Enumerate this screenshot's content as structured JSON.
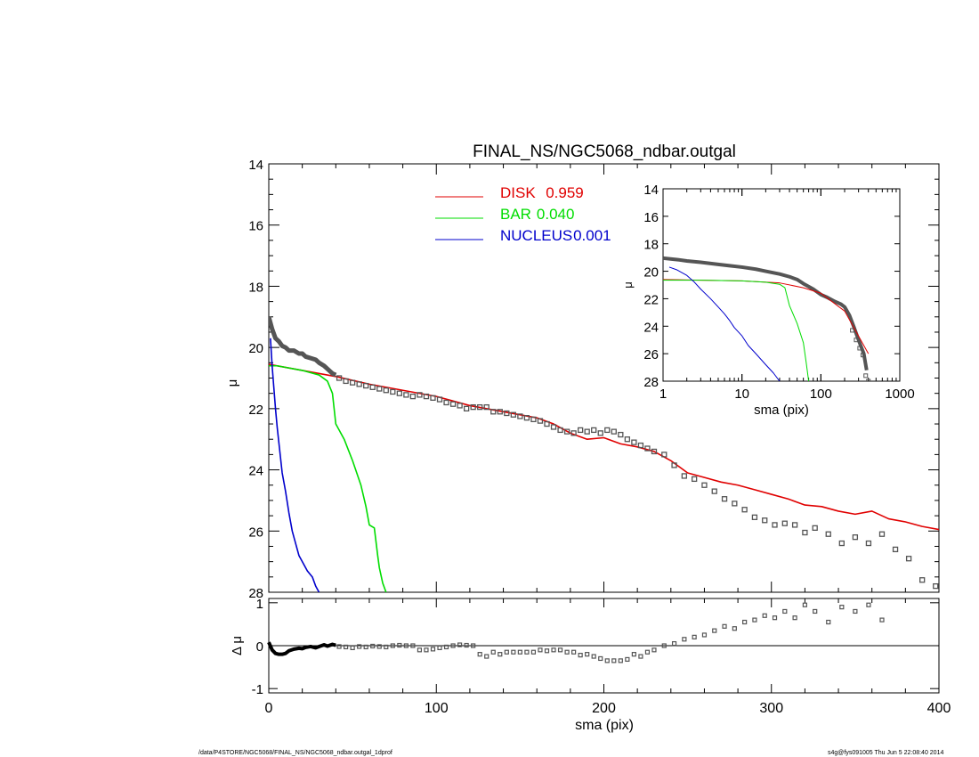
{
  "footer": {
    "path": "/data/P4STORE/NGC5068/FINAL_NS/NGC5068_ndbar.outgal_1dprof",
    "user_time": "s4g@fys091005  Thu Jun  5 22:08:40 2014"
  },
  "chart_data": [
    {
      "id": "main",
      "type": "line",
      "title": "FINAL_NS/NGC5068_ndbar.outgal",
      "xlabel": "",
      "ylabel": "μ",
      "xlim": [
        0,
        400
      ],
      "ylim": [
        28,
        14
      ],
      "y_inverted": true,
      "yticks": [
        14,
        16,
        18,
        20,
        22,
        24,
        26,
        28
      ],
      "grid": false,
      "legend_position": "top-center",
      "legend": [
        {
          "name": "DISK",
          "value": "0.959",
          "color": "#e00000"
        },
        {
          "name": "BAR",
          "value": "0.040",
          "color": "#00dd00"
        },
        {
          "name": "NUCLEUS",
          "value": "0.001",
          "color": "#0000cc"
        }
      ],
      "series": [
        {
          "name": "DISK",
          "color": "#e00000",
          "style": "line",
          "x": [
            0,
            20,
            40,
            60,
            80,
            100,
            120,
            140,
            160,
            170,
            180,
            190,
            200,
            210,
            220,
            230,
            240,
            250,
            260,
            270,
            280,
            290,
            300,
            310,
            320,
            330,
            340,
            350,
            360,
            370,
            380,
            390,
            400
          ],
          "y": [
            20.55,
            20.75,
            20.95,
            21.2,
            21.4,
            21.6,
            21.9,
            22.1,
            22.3,
            22.5,
            22.8,
            23.0,
            22.95,
            23.15,
            23.25,
            23.4,
            23.7,
            24.1,
            24.25,
            24.4,
            24.5,
            24.65,
            24.8,
            24.95,
            25.15,
            25.2,
            25.35,
            25.45,
            25.35,
            25.6,
            25.7,
            25.85,
            25.95
          ]
        },
        {
          "name": "BAR",
          "color": "#00dd00",
          "style": "line",
          "x": [
            0,
            5,
            10,
            20,
            30,
            35,
            38,
            40,
            45,
            50,
            55,
            58,
            60,
            63,
            65,
            66,
            68,
            70
          ],
          "y": [
            20.6,
            20.6,
            20.65,
            20.75,
            20.9,
            21.1,
            21.5,
            22.5,
            23.0,
            23.7,
            24.5,
            25.2,
            25.8,
            25.9,
            26.8,
            27.2,
            27.7,
            28.0
          ]
        },
        {
          "name": "NUCLEUS",
          "color": "#0000cc",
          "style": "line",
          "x": [
            1,
            2,
            3,
            4,
            5,
            6,
            7,
            8,
            10,
            12,
            14,
            16,
            18,
            20,
            23,
            26,
            28,
            30
          ],
          "y": [
            19.7,
            20.6,
            21.3,
            22.0,
            22.6,
            23.1,
            23.6,
            24.1,
            24.7,
            25.4,
            26.0,
            26.4,
            26.8,
            27.0,
            27.3,
            27.5,
            27.8,
            28.0
          ]
        },
        {
          "name": "data",
          "color": "#555555",
          "style": "squares",
          "x": [
            42,
            46,
            50,
            54,
            58,
            62,
            66,
            70,
            74,
            78,
            82,
            86,
            90,
            94,
            98,
            102,
            106,
            110,
            114,
            118,
            122,
            126,
            130,
            134,
            138,
            142,
            146,
            150,
            154,
            158,
            162,
            166,
            170,
            174,
            178,
            182,
            186,
            190,
            194,
            198,
            202,
            206,
            210,
            214,
            218,
            222,
            226,
            230,
            236,
            242,
            248,
            254,
            260,
            266,
            272,
            278,
            284,
            290,
            296,
            302,
            308,
            314,
            320,
            326,
            334,
            342,
            350,
            358,
            366,
            374,
            382,
            390,
            398
          ],
          "y": [
            21.0,
            21.1,
            21.15,
            21.2,
            21.25,
            21.3,
            21.35,
            21.4,
            21.45,
            21.5,
            21.55,
            21.6,
            21.55,
            21.6,
            21.65,
            21.7,
            21.8,
            21.85,
            21.9,
            22.0,
            21.95,
            21.95,
            21.95,
            22.1,
            22.1,
            22.15,
            22.2,
            22.25,
            22.3,
            22.35,
            22.4,
            22.5,
            22.6,
            22.7,
            22.75,
            22.8,
            22.7,
            22.75,
            22.7,
            22.8,
            22.7,
            22.75,
            22.85,
            23.0,
            23.1,
            23.2,
            23.3,
            23.4,
            23.5,
            23.85,
            24.2,
            24.3,
            24.5,
            24.7,
            24.95,
            25.1,
            25.3,
            25.55,
            25.65,
            25.8,
            25.75,
            25.8,
            26.05,
            25.9,
            26.1,
            26.4,
            26.2,
            26.4,
            26.1,
            26.6,
            26.9,
            27.6,
            27.8
          ]
        },
        {
          "name": "data-inner",
          "color": "#555555",
          "style": "thick",
          "x": [
            0,
            2,
            4,
            6,
            8,
            10,
            12,
            15,
            18,
            20,
            22,
            25,
            28,
            30,
            33,
            35,
            38,
            40
          ],
          "y": [
            19.0,
            19.4,
            19.7,
            19.8,
            19.95,
            20.0,
            20.1,
            20.1,
            20.2,
            20.2,
            20.3,
            20.35,
            20.4,
            20.5,
            20.6,
            20.7,
            20.85,
            20.9
          ]
        }
      ]
    },
    {
      "id": "residual",
      "type": "scatter",
      "xlabel": "sma (pix)",
      "ylabel": "Δ μ",
      "xlim": [
        0,
        400
      ],
      "ylim": [
        -1.1,
        1.1
      ],
      "xticks": [
        0,
        100,
        200,
        300,
        400
      ],
      "yticks": [
        1,
        0,
        -1
      ],
      "zero_line": true,
      "series": [
        {
          "name": "residual-inner",
          "style": "thick",
          "x": [
            0,
            2,
            4,
            6,
            8,
            10,
            12,
            15,
            18,
            20,
            22,
            25,
            28,
            30,
            33,
            35,
            38,
            40
          ],
          "y": [
            0.08,
            -0.1,
            -0.18,
            -0.2,
            -0.2,
            -0.18,
            -0.12,
            -0.08,
            -0.06,
            -0.07,
            -0.04,
            -0.02,
            -0.05,
            -0.02,
            0.02,
            -0.01,
            0.03,
            0.01
          ]
        },
        {
          "name": "residual",
          "style": "squares",
          "x": [
            42,
            46,
            50,
            54,
            58,
            62,
            66,
            70,
            74,
            78,
            82,
            86,
            90,
            94,
            98,
            102,
            106,
            110,
            114,
            118,
            122,
            126,
            130,
            134,
            138,
            142,
            146,
            150,
            154,
            158,
            162,
            166,
            170,
            174,
            178,
            182,
            186,
            190,
            194,
            198,
            202,
            206,
            210,
            214,
            218,
            222,
            226,
            230,
            236,
            242,
            248,
            254,
            260,
            266,
            272,
            278,
            284,
            290,
            296,
            302,
            308,
            314,
            320,
            326,
            334,
            342,
            350,
            358,
            366
          ],
          "y": [
            -0.02,
            -0.03,
            -0.05,
            -0.02,
            -0.03,
            -0.01,
            -0.02,
            -0.03,
            0.0,
            0.01,
            0.0,
            0.0,
            -0.1,
            -0.1,
            -0.08,
            -0.05,
            -0.03,
            0.0,
            0.02,
            0.01,
            0.0,
            -0.2,
            -0.25,
            -0.15,
            -0.2,
            -0.15,
            -0.15,
            -0.15,
            -0.15,
            -0.15,
            -0.1,
            -0.12,
            -0.1,
            -0.1,
            -0.15,
            -0.15,
            -0.22,
            -0.2,
            -0.25,
            -0.3,
            -0.35,
            -0.35,
            -0.35,
            -0.32,
            -0.2,
            -0.25,
            -0.15,
            -0.1,
            0.0,
            0.05,
            0.15,
            0.2,
            0.25,
            0.35,
            0.45,
            0.4,
            0.55,
            0.6,
            0.7,
            0.65,
            0.8,
            0.65,
            0.95,
            0.8,
            0.55,
            0.9,
            0.8,
            0.95,
            0.6
          ]
        }
      ]
    },
    {
      "id": "inset",
      "type": "line",
      "x_scale": "log",
      "xlim": [
        1,
        1000
      ],
      "ylim": [
        28,
        14
      ],
      "y_inverted": true,
      "xlabel": "sma (pix)",
      "ylabel": "μ",
      "xtick_labels": [
        "1",
        "10",
        "100",
        "1000"
      ],
      "yticks": [
        14,
        16,
        18,
        20,
        22,
        24,
        26,
        28
      ],
      "series": [
        {
          "name": "data",
          "style": "thick",
          "color": "#555555",
          "x": [
            1.0,
            1.5,
            2,
            3,
            5,
            7,
            10,
            15,
            20,
            30,
            40,
            50,
            60,
            80,
            100,
            120,
            150,
            180,
            200,
            230,
            260,
            300,
            350,
            380
          ],
          "y": [
            19.05,
            19.15,
            19.25,
            19.35,
            19.5,
            19.6,
            19.7,
            19.85,
            20.0,
            20.2,
            20.4,
            20.6,
            20.9,
            21.3,
            21.7,
            21.9,
            22.2,
            22.4,
            22.6,
            23.2,
            24.0,
            25.0,
            26.0,
            27.2
          ]
        },
        {
          "name": "data-tail",
          "style": "squares",
          "color": "#555555",
          "x": [
            250,
            280,
            310,
            340,
            370,
            400
          ],
          "y": [
            24.3,
            25.0,
            25.6,
            26.1,
            27.6,
            28.0
          ]
        },
        {
          "name": "DISK",
          "color": "#e00000",
          "style": "line",
          "x": [
            1,
            3,
            10,
            30,
            60,
            100,
            200,
            400
          ],
          "y": [
            20.6,
            20.65,
            20.7,
            20.85,
            21.2,
            21.6,
            22.9,
            26.0
          ]
        },
        {
          "name": "BAR",
          "color": "#00dd00",
          "style": "line",
          "x": [
            1,
            3,
            10,
            20,
            30,
            35,
            40,
            50,
            60,
            65,
            70
          ],
          "y": [
            20.65,
            20.65,
            20.7,
            20.8,
            20.95,
            21.2,
            22.5,
            23.8,
            25.2,
            26.6,
            28.0
          ]
        },
        {
          "name": "NUCLEUS",
          "color": "#0000cc",
          "style": "line",
          "x": [
            1.2,
            1.5,
            2,
            2.5,
            3,
            4,
            5,
            6,
            7,
            8,
            10,
            12,
            15,
            20,
            25,
            30
          ],
          "y": [
            19.7,
            19.9,
            20.3,
            20.8,
            21.3,
            22.0,
            22.6,
            23.1,
            23.6,
            24.1,
            24.7,
            25.4,
            26.0,
            26.8,
            27.4,
            28.0
          ]
        }
      ]
    }
  ]
}
